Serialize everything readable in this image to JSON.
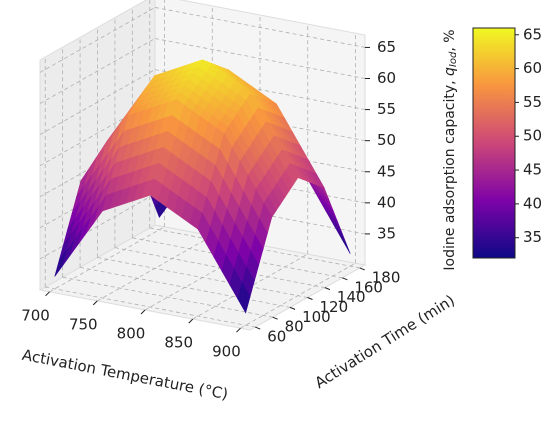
{
  "chart_data": {
    "type": "surface",
    "x_label": "Activation Temperature (°C)",
    "y_label": "Activation Time (min)",
    "colorbar_label": {
      "text": "Iodine adsorption capacity, ",
      "symbol": "q",
      "subscript": "Iod",
      "unit": ", %"
    },
    "x": [
      700,
      750,
      800,
      850,
      900
    ],
    "y": [
      60,
      90,
      120,
      150,
      180
    ],
    "z": [
      [
        32,
        44,
        48,
        44,
        32
      ],
      [
        45,
        57,
        61,
        57,
        45
      ],
      [
        49,
        61,
        65,
        61,
        49
      ],
      [
        45,
        57,
        61,
        57,
        45
      ],
      [
        32,
        44,
        48,
        44,
        32
      ]
    ],
    "colormap": "plasma",
    "clim": [
      32,
      66
    ],
    "xlim": [
      690,
      910
    ],
    "xticks": [
      700,
      750,
      800,
      850,
      900
    ],
    "ylim": [
      54,
      186
    ],
    "yticks": [
      60,
      80,
      100,
      120,
      140,
      160,
      180
    ],
    "zlim": [
      30,
      67
    ],
    "zticks": [
      35,
      40,
      45,
      50,
      55,
      60,
      65
    ],
    "colorbar_ticks": [
      35,
      40,
      45,
      50,
      55,
      60,
      65
    ],
    "grid": true
  }
}
